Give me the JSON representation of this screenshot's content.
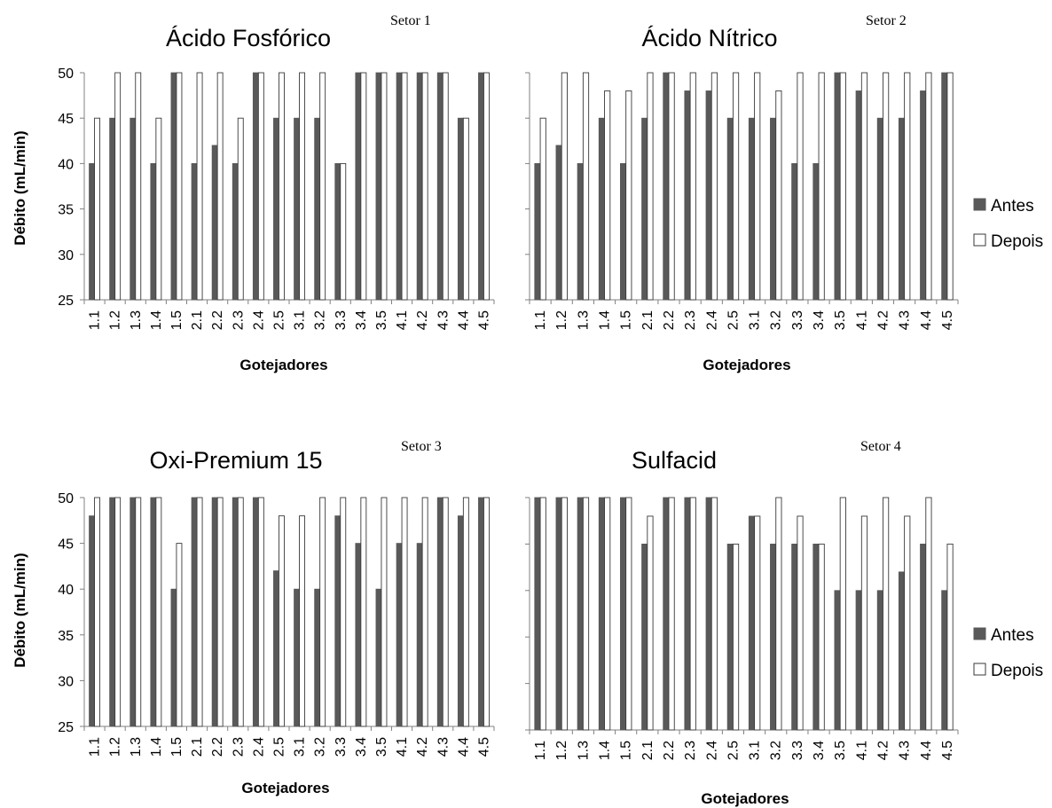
{
  "colors": {
    "antes": "#595959",
    "depois": "#ffffff",
    "outline": "#3a3a3a",
    "axis": "#808080"
  },
  "legend": [
    "Antes",
    "Depois"
  ],
  "chart_data": [
    {
      "type": "bar",
      "title": "Ácido Fosfórico",
      "annotation": "Setor 1",
      "xlabel": "Gotejadores",
      "ylabel": "Débito (mL/min)",
      "ylim": [
        25,
        50
      ],
      "yticks": [
        25,
        30,
        35,
        40,
        45,
        50
      ],
      "categories": [
        "1.1",
        "1.2",
        "1.3",
        "1.4",
        "1.5",
        "2.1",
        "2.2",
        "2.3",
        "2.4",
        "2.5",
        "3.1",
        "3.2",
        "3.3",
        "3.4",
        "3.5",
        "4.1",
        "4.2",
        "4.3",
        "4.4",
        "4.5"
      ],
      "series": [
        {
          "name": "Antes",
          "values": [
            40,
            45,
            45,
            40,
            50,
            40,
            42,
            40,
            50,
            45,
            45,
            45,
            40,
            50,
            50,
            50,
            50,
            50,
            45,
            50
          ]
        },
        {
          "name": "Depois",
          "values": [
            45,
            50,
            50,
            45,
            50,
            50,
            50,
            45,
            50,
            50,
            50,
            50,
            40,
            50,
            50,
            50,
            50,
            50,
            45,
            50
          ]
        }
      ],
      "legend_position": "right"
    },
    {
      "type": "bar",
      "title": "Ácido Nítrico",
      "annotation": "Setor 2",
      "xlabel": "Gotejadores",
      "ylabel": "",
      "ylim": [
        25,
        50
      ],
      "yticks": [],
      "categories": [
        "1.1",
        "1.2",
        "1.3",
        "1.4",
        "1.5",
        "2.1",
        "2.2",
        "2.3",
        "2.4",
        "2.5",
        "3.1",
        "3.2",
        "3.3",
        "3.4",
        "3.5",
        "4.1",
        "4.2",
        "4.3",
        "4.4",
        "4.5"
      ],
      "series": [
        {
          "name": "Antes",
          "values": [
            40,
            42,
            40,
            45,
            40,
            45,
            50,
            48,
            48,
            45,
            45,
            45,
            40,
            40,
            50,
            48,
            45,
            45,
            48,
            50
          ]
        },
        {
          "name": "Depois",
          "values": [
            45,
            50,
            50,
            48,
            48,
            50,
            50,
            50,
            50,
            50,
            50,
            48,
            50,
            50,
            50,
            50,
            50,
            50,
            50,
            50
          ]
        }
      ],
      "legend_position": "right"
    },
    {
      "type": "bar",
      "title": "Oxi-Premium 15",
      "annotation": "Setor 3",
      "xlabel": "Gotejadores",
      "ylabel": "Débito (mL/min)",
      "ylim": [
        25,
        50
      ],
      "yticks": [
        25,
        30,
        35,
        40,
        45,
        50
      ],
      "categories": [
        "1.1",
        "1.2",
        "1.3",
        "1.4",
        "1.5",
        "2.1",
        "2.2",
        "2.3",
        "2.4",
        "2.5",
        "3.1",
        "3.2",
        "3.3",
        "3.4",
        "3.5",
        "4.1",
        "4.2",
        "4.3",
        "4.4",
        "4.5"
      ],
      "series": [
        {
          "name": "Antes",
          "values": [
            48,
            50,
            50,
            50,
            40,
            50,
            50,
            50,
            50,
            42,
            40,
            40,
            48,
            45,
            40,
            45,
            45,
            50,
            48,
            50
          ]
        },
        {
          "name": "Depois",
          "values": [
            50,
            50,
            50,
            50,
            45,
            50,
            50,
            50,
            50,
            48,
            48,
            50,
            50,
            50,
            50,
            50,
            50,
            50,
            50,
            50
          ]
        }
      ],
      "legend_position": "right"
    },
    {
      "type": "bar",
      "title": "Sulfacid",
      "annotation": "Setor 4",
      "xlabel": "Gotejadores",
      "ylabel": "",
      "ylim": [
        25,
        50
      ],
      "yticks": [],
      "categories": [
        "1.1",
        "1.2",
        "1.3",
        "1.4",
        "1.5",
        "2.1",
        "2.2",
        "2.3",
        "2.4",
        "2.5",
        "3.1",
        "3.2",
        "3.3",
        "3.4",
        "3.5",
        "4.1",
        "4.2",
        "4.3",
        "4.4",
        "4.5"
      ],
      "series": [
        {
          "name": "Antes",
          "values": [
            50,
            50,
            50,
            50,
            50,
            45,
            50,
            50,
            50,
            45,
            48,
            45,
            45,
            45,
            40,
            40,
            40,
            42,
            45,
            40
          ]
        },
        {
          "name": "Depois",
          "values": [
            50,
            50,
            50,
            50,
            50,
            48,
            50,
            50,
            50,
            45,
            48,
            50,
            48,
            45,
            50,
            48,
            50,
            48,
            50,
            45
          ]
        }
      ],
      "legend_position": "right"
    }
  ]
}
